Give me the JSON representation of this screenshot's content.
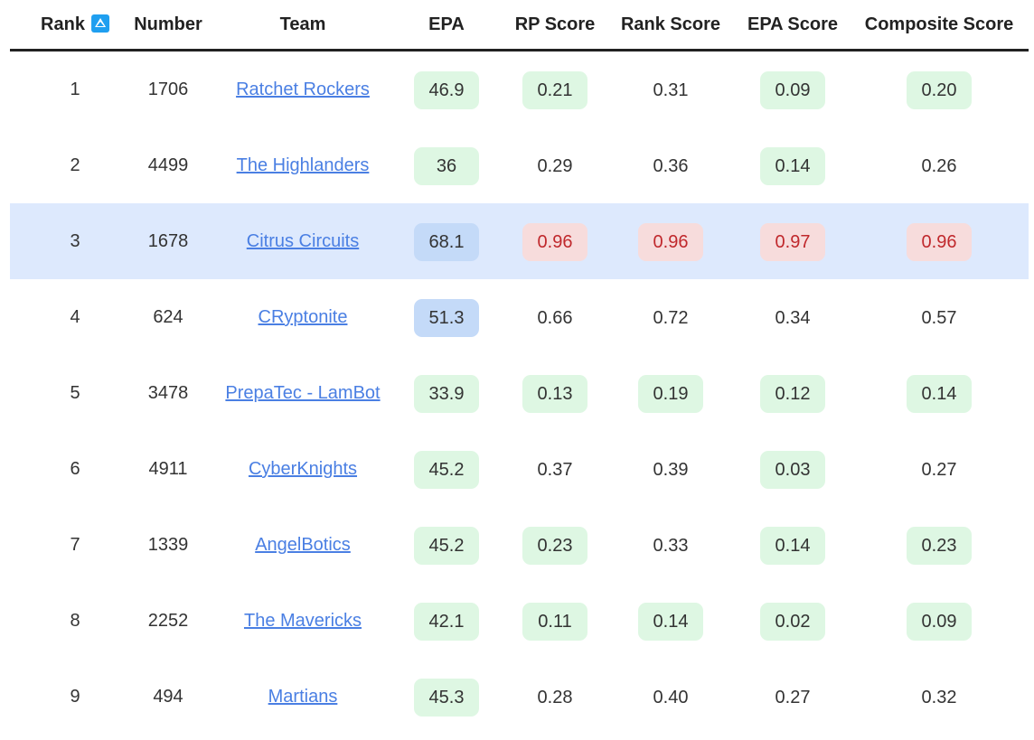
{
  "table": {
    "headers": {
      "rank": "Rank",
      "number": "Number",
      "team": "Team",
      "epa": "EPA",
      "rp_score": "RP Score",
      "rank_score": "Rank Score",
      "epa_score": "EPA Score",
      "composite_score": "Composite Score"
    },
    "sort": {
      "column": "rank",
      "direction": "ascending",
      "icon": "sort-up-icon"
    },
    "colors": {
      "green_pill": "#def7e3",
      "blue_pill": "#c4daf8",
      "red_pill": "#f7dcdc",
      "red_text": "#c0282c",
      "highlight_row": "#dde9fd",
      "link": "#4a7fe3",
      "sort_icon": "#1f9ff0"
    },
    "rows": [
      {
        "rank": "1",
        "number": "1706",
        "team": "Ratchet Rockers",
        "highlight": false,
        "epa": {
          "v": "46.9",
          "c": "green"
        },
        "rp": {
          "v": "0.21",
          "c": "green"
        },
        "rank_score": {
          "v": "0.31",
          "c": "none"
        },
        "epa_score": {
          "v": "0.09",
          "c": "green"
        },
        "composite": {
          "v": "0.20",
          "c": "green"
        }
      },
      {
        "rank": "2",
        "number": "4499",
        "team": "The Highlanders",
        "highlight": false,
        "epa": {
          "v": "36",
          "c": "green"
        },
        "rp": {
          "v": "0.29",
          "c": "none"
        },
        "rank_score": {
          "v": "0.36",
          "c": "none"
        },
        "epa_score": {
          "v": "0.14",
          "c": "green"
        },
        "composite": {
          "v": "0.26",
          "c": "none"
        }
      },
      {
        "rank": "3",
        "number": "1678",
        "team": "Citrus Circuits",
        "highlight": true,
        "epa": {
          "v": "68.1",
          "c": "blue"
        },
        "rp": {
          "v": "0.96",
          "c": "red"
        },
        "rank_score": {
          "v": "0.96",
          "c": "red"
        },
        "epa_score": {
          "v": "0.97",
          "c": "red"
        },
        "composite": {
          "v": "0.96",
          "c": "red"
        }
      },
      {
        "rank": "4",
        "number": "624",
        "team": "CRyptonite",
        "highlight": false,
        "epa": {
          "v": "51.3",
          "c": "blue"
        },
        "rp": {
          "v": "0.66",
          "c": "none"
        },
        "rank_score": {
          "v": "0.72",
          "c": "none"
        },
        "epa_score": {
          "v": "0.34",
          "c": "none"
        },
        "composite": {
          "v": "0.57",
          "c": "none"
        }
      },
      {
        "rank": "5",
        "number": "3478",
        "team": "PrepaTec - LamBot",
        "highlight": false,
        "epa": {
          "v": "33.9",
          "c": "green"
        },
        "rp": {
          "v": "0.13",
          "c": "green"
        },
        "rank_score": {
          "v": "0.19",
          "c": "green"
        },
        "epa_score": {
          "v": "0.12",
          "c": "green"
        },
        "composite": {
          "v": "0.14",
          "c": "green"
        }
      },
      {
        "rank": "6",
        "number": "4911",
        "team": "CyberKnights",
        "highlight": false,
        "epa": {
          "v": "45.2",
          "c": "green"
        },
        "rp": {
          "v": "0.37",
          "c": "none"
        },
        "rank_score": {
          "v": "0.39",
          "c": "none"
        },
        "epa_score": {
          "v": "0.03",
          "c": "green"
        },
        "composite": {
          "v": "0.27",
          "c": "none"
        }
      },
      {
        "rank": "7",
        "number": "1339",
        "team": "AngelBotics",
        "highlight": false,
        "epa": {
          "v": "45.2",
          "c": "green"
        },
        "rp": {
          "v": "0.23",
          "c": "green"
        },
        "rank_score": {
          "v": "0.33",
          "c": "none"
        },
        "epa_score": {
          "v": "0.14",
          "c": "green"
        },
        "composite": {
          "v": "0.23",
          "c": "green"
        }
      },
      {
        "rank": "8",
        "number": "2252",
        "team": "The Mavericks",
        "highlight": false,
        "epa": {
          "v": "42.1",
          "c": "green"
        },
        "rp": {
          "v": "0.11",
          "c": "green"
        },
        "rank_score": {
          "v": "0.14",
          "c": "green"
        },
        "epa_score": {
          "v": "0.02",
          "c": "green"
        },
        "composite": {
          "v": "0.09",
          "c": "green"
        }
      },
      {
        "rank": "9",
        "number": "494",
        "team": "Martians",
        "highlight": false,
        "epa": {
          "v": "45.3",
          "c": "green"
        },
        "rp": {
          "v": "0.28",
          "c": "none"
        },
        "rank_score": {
          "v": "0.40",
          "c": "none"
        },
        "epa_score": {
          "v": "0.27",
          "c": "none"
        },
        "composite": {
          "v": "0.32",
          "c": "none"
        }
      }
    ]
  }
}
